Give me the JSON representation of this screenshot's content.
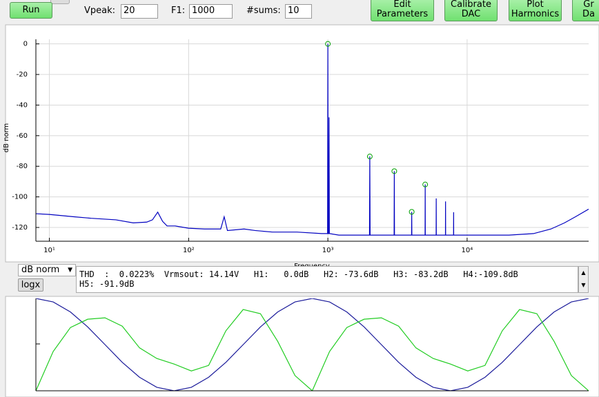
{
  "toolbar": {
    "run": "Run",
    "vpeak_label": "Vpeak:",
    "vpeak": "20",
    "f1_label": "F1:",
    "f1": "1000",
    "sums_label": "#sums:",
    "sums": "10",
    "buttons": [
      [
        "Edit",
        "Parameters"
      ],
      [
        "Calibrate",
        "DAC"
      ],
      [
        "Plot",
        "Harmonics"
      ],
      [
        "Gr",
        "Da"
      ]
    ]
  },
  "chart_data": [
    {
      "type": "line",
      "ylabel": "dB norm",
      "xlabel": "Frequency",
      "log_x": true,
      "grid": true,
      "xlim": [
        8,
        74600
      ],
      "ylim": [
        -129,
        3
      ],
      "xticks": [
        {
          "value": 10,
          "label": "10¹"
        },
        {
          "value": 100,
          "label": "10²"
        },
        {
          "value": 1000,
          "label": "10³"
        },
        {
          "value": 10000,
          "label": "10⁴"
        }
      ],
      "yticks": [
        0,
        -20,
        -40,
        -60,
        -80,
        -100,
        -120
      ],
      "series": [
        {
          "color": "#0000c0",
          "x": [
            8,
            10,
            15,
            20,
            30,
            40,
            50,
            55,
            60,
            65,
            70,
            80,
            100,
            130,
            170,
            180,
            190,
            250,
            300,
            400,
            600,
            900,
            995,
            1000,
            1005,
            1015,
            1020,
            1025,
            1200,
            1800,
            1990,
            2000,
            2010,
            2990,
            3000,
            3010,
            3990,
            4000,
            4010,
            4990,
            5000,
            5010,
            5990,
            6000,
            6010,
            6990,
            7000,
            7010,
            7990,
            8000,
            8010,
            9000,
            10000,
            20000,
            30000,
            40000,
            50000,
            60000,
            74600
          ],
          "values": [
            -111,
            -111.5,
            -113,
            -114,
            -115,
            -117,
            -116.5,
            -115,
            -110,
            -116,
            -119,
            -119,
            -120.5,
            -121,
            -121,
            -113,
            -122,
            -121,
            -122,
            -123,
            -123,
            -124,
            -124,
            0,
            -124,
            -124,
            -48,
            -124,
            -125,
            -125,
            -125,
            -73.6,
            -125,
            -125,
            -83.2,
            -125,
            -125,
            -109.8,
            -125,
            -125,
            -91.9,
            -125,
            -125,
            -101,
            -125,
            -125,
            -103,
            -125,
            -125,
            -110,
            -125,
            -125,
            -125,
            -125,
            -124,
            -121,
            -117,
            -113,
            -108
          ]
        }
      ],
      "markers": {
        "color": "#00a000",
        "x": [
          1000,
          2000,
          3000,
          4000,
          5000
        ],
        "values": [
          0,
          -73.6,
          -83.2,
          -109.8,
          -91.9
        ]
      }
    },
    {
      "type": "line",
      "xlim": [
        0,
        32
      ],
      "ylim": [
        -1,
        1
      ],
      "x": [
        0,
        1,
        2,
        3,
        4,
        5,
        6,
        7,
        8,
        9,
        10,
        11,
        12,
        13,
        14,
        15,
        16,
        17,
        18,
        19,
        20,
        21,
        22,
        23,
        24,
        25,
        26,
        27,
        28,
        29,
        30,
        31,
        32
      ],
      "series": [
        {
          "color": "#1a1a9a",
          "values": [
            1,
            0.924,
            0.707,
            0.383,
            0,
            -0.383,
            -0.707,
            -0.924,
            -1,
            -0.924,
            -0.707,
            -0.383,
            0,
            0.383,
            0.707,
            0.924,
            1,
            0.924,
            0.707,
            0.383,
            0,
            -0.383,
            -0.707,
            -0.924,
            -1,
            -0.924,
            -0.707,
            -0.383,
            0,
            0.383,
            0.707,
            0.924,
            1
          ]
        },
        {
          "color": "#20cc20",
          "values": [
            -1,
            -0.15,
            0.37,
            0.55,
            0.58,
            0.4,
            -0.07,
            -0.3,
            -0.42,
            -0.57,
            -0.45,
            0.3,
            0.76,
            0.67,
            0.07,
            -0.67,
            -1,
            -0.15,
            0.37,
            0.55,
            0.58,
            0.4,
            -0.07,
            -0.3,
            -0.42,
            -0.57,
            -0.45,
            0.3,
            0.76,
            0.67,
            0.07,
            -0.67,
            -1
          ]
        }
      ]
    }
  ],
  "controls": {
    "scale_select": "dB norm",
    "logx": "logx",
    "results": [
      "THD  :  0.0223%  Vrmsout: 14.14V   H1:   0.0dB   H2: -73.6dB   H3: -83.2dB   H4:-109.8dB",
      "H5: -91.9dB"
    ]
  }
}
